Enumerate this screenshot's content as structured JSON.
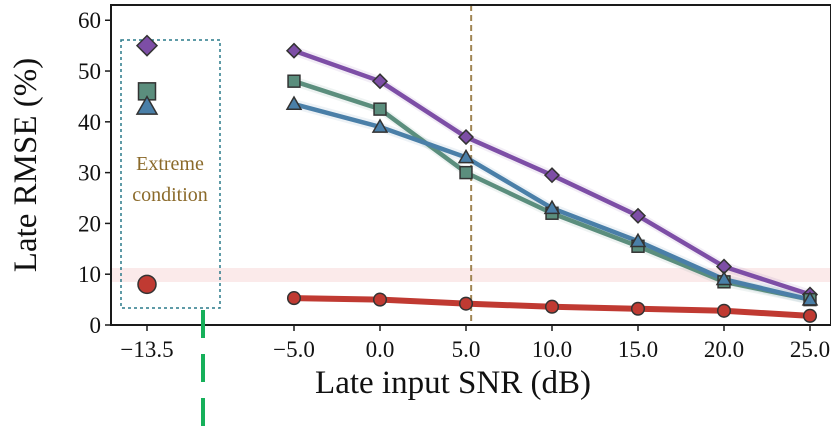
{
  "chart_data": {
    "type": "line",
    "xlabel": "Late input SNR (dB)",
    "ylabel": "Late RMSE (%)",
    "ylim": [
      0,
      63
    ],
    "grid": false,
    "x_ticks": [
      "−13.5",
      "−5.0",
      "0.0",
      "5.0",
      "10.0",
      "15.0",
      "20.0",
      "25.0"
    ],
    "y_ticks": [
      "0",
      "10",
      "20",
      "30",
      "40",
      "50",
      "60"
    ],
    "x": [
      -5,
      0,
      5,
      10,
      15,
      20,
      25
    ],
    "series": [
      {
        "marker": "diamond",
        "color": "#7d4ea6",
        "extreme_value": 55,
        "values": [
          54,
          48,
          37,
          29.5,
          21.5,
          11.5,
          6
        ]
      },
      {
        "marker": "square",
        "color": "#5b8e7d",
        "extreme_value": 46,
        "values": [
          48,
          42.5,
          30,
          22,
          15.5,
          8.5,
          5
        ]
      },
      {
        "marker": "triangle",
        "color": "#4a7fa8",
        "extreme_value": 43,
        "values": [
          43.5,
          39,
          33,
          23,
          16.5,
          9,
          5
        ]
      },
      {
        "marker": "circle",
        "color": "#c03a32",
        "extreme_value": 8,
        "values": [
          5.3,
          5,
          4.2,
          3.6,
          3.2,
          2.8,
          1.8
        ]
      }
    ],
    "extreme": {
      "x_label": "−13.5",
      "label_line1": "Extreme",
      "label_line2": "condition"
    },
    "vline_x": 5.3,
    "colors": {
      "vline": "#a08553",
      "extreme_label": "#8b6a2a",
      "extreme_box": "#2a7a8a",
      "arrow": "#16b05a",
      "band": "#fbeaea"
    }
  }
}
